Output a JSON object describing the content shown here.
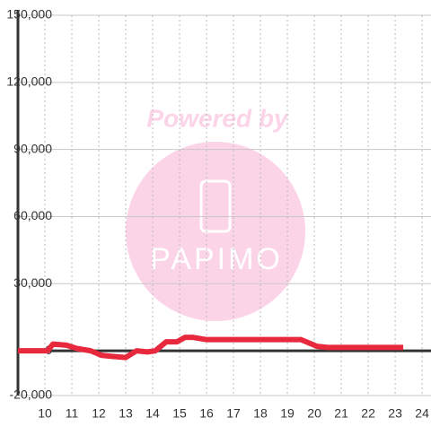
{
  "chart_data": {
    "type": "line",
    "watermark": {
      "top": "Powered by",
      "bottom": "PAPIMO"
    },
    "x": [
      9,
      10.1,
      10.3,
      10.8,
      11.2,
      11.7,
      12.1,
      12.5,
      13,
      13.4,
      13.8,
      14.1,
      14.5,
      14.9,
      15.2,
      15.5,
      16,
      19.5,
      20.1,
      20.5,
      23.3
    ],
    "series": [
      {
        "color": "#e8283c",
        "values": [
          0,
          0,
          3000,
          2500,
          1000,
          0,
          -2000,
          -2500,
          -3000,
          0,
          -500,
          0,
          4000,
          4000,
          6000,
          6000,
          5000,
          5000,
          2000,
          1500,
          1500
        ]
      }
    ],
    "xlim": [
      9,
      24.33
    ],
    "ylim": [
      -20000,
      150000
    ],
    "xticks": [
      10,
      11,
      12,
      13,
      14,
      15,
      16,
      17,
      18,
      19,
      20,
      21,
      22,
      23,
      24
    ],
    "yticks": [
      {
        "value": -20000,
        "label": "-20,000"
      },
      0,
      {
        "value": 30000,
        "label": "30,000"
      },
      {
        "value": 60000,
        "label": "60,000"
      },
      {
        "value": 90000,
        "label": "90,000"
      },
      {
        "value": 120000,
        "label": "120,000"
      },
      {
        "value": 150000,
        "label": "150,000"
      }
    ],
    "grid": true
  }
}
